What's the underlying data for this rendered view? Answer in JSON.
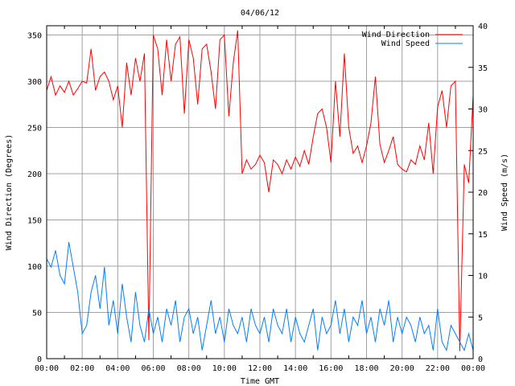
{
  "chart_data": {
    "type": "line",
    "title": "04/06/12",
    "xlabel": "Time GMT",
    "ylabel": "Wind Direction (Degrees)",
    "y2label": "Wind Speed (m/s)",
    "xlim": [
      0,
      24
    ],
    "ylim": [
      0,
      360
    ],
    "y2lim": [
      0,
      40
    ],
    "grid": true,
    "legend_position": "top-right",
    "x_ticks": [
      "00:00",
      "02:00",
      "04:00",
      "06:00",
      "08:00",
      "10:00",
      "12:00",
      "14:00",
      "16:00",
      "18:00",
      "20:00",
      "22:00",
      "00:00"
    ],
    "y_ticks": [
      "0",
      "50",
      "100",
      "150",
      "200",
      "250",
      "300",
      "350"
    ],
    "y2_ticks": [
      "0",
      "5",
      "10",
      "15",
      "20",
      "25",
      "30",
      "35",
      "40"
    ],
    "x_step_hours": 0.25,
    "series": [
      {
        "name": "Wind Direction",
        "axis": "y",
        "color": "#ff0000",
        "values": [
          290,
          305,
          285,
          295,
          288,
          300,
          285,
          292,
          300,
          298,
          335,
          290,
          305,
          310,
          300,
          280,
          295,
          250,
          320,
          285,
          325,
          300,
          330,
          20,
          350,
          335,
          285,
          345,
          300,
          340,
          348,
          265,
          345,
          325,
          275,
          335,
          340,
          310,
          270,
          345,
          350,
          262,
          320,
          355,
          200,
          215,
          205,
          210,
          220,
          212,
          180,
          215,
          210,
          200,
          215,
          205,
          218,
          208,
          225,
          210,
          240,
          265,
          270,
          250,
          212,
          300,
          240,
          330,
          250,
          222,
          230,
          212,
          230,
          255,
          305,
          232,
          212,
          225,
          240,
          210,
          205,
          202,
          215,
          210,
          230,
          215,
          255,
          200,
          272,
          290,
          250,
          295,
          300,
          8,
          210,
          190,
          285
        ]
      },
      {
        "name": "Wind Speed",
        "axis": "y2",
        "color": "#0080ff",
        "values": [
          12,
          11,
          13,
          10,
          9,
          14,
          11,
          8,
          3,
          4,
          8,
          10,
          6,
          11,
          4,
          7,
          3,
          9,
          5,
          2,
          8,
          4,
          2,
          6,
          3,
          5,
          2,
          6,
          4,
          7,
          2,
          5,
          6,
          3,
          5,
          1,
          4,
          7,
          3,
          5,
          2,
          6,
          4,
          3,
          5,
          2,
          6,
          4,
          3,
          5,
          2,
          6,
          4,
          3,
          6,
          2,
          5,
          3,
          2,
          4,
          6,
          1,
          5,
          3,
          4,
          7,
          3,
          6,
          2,
          5,
          4,
          7,
          3,
          5,
          2,
          6,
          4,
          7,
          2,
          5,
          3,
          5,
          4,
          2,
          5,
          3,
          4,
          1,
          6,
          2,
          1,
          4,
          3,
          2,
          1,
          3,
          1
        ]
      }
    ]
  }
}
